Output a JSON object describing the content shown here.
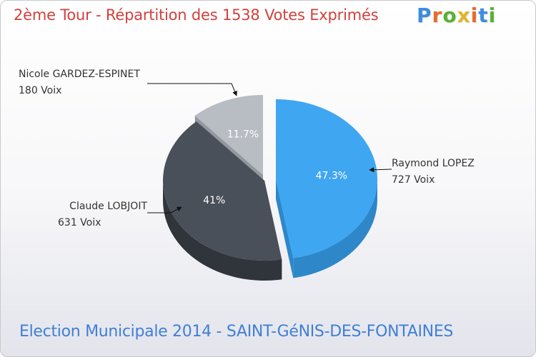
{
  "header": {
    "title": "2ème Tour - Répartition des 1538 Votes Exprimés",
    "logo": [
      "P",
      "r",
      "o",
      "x",
      "i",
      "t",
      "i"
    ],
    "logo_colors": [
      "#3c8de0",
      "#e86a2c",
      "#58b134",
      "#e0b52a",
      "#e86a2c",
      "#3c8de0",
      "#58b134"
    ]
  },
  "footer": {
    "caption": "Election Municipale 2014 - SAINT-GéNIS-DES-FONTAINES"
  },
  "chart_data": {
    "type": "pie",
    "title": "2ème Tour - Répartition des 1538 Votes Exprimés",
    "total_votes": 1538,
    "slices": [
      {
        "name": "Raymond LOPEZ",
        "votes": 727,
        "votes_label": "727 Voix",
        "percent": 47.3,
        "percent_label": "47.3%",
        "color": "#3fa6f2",
        "side_color": "#2d87c9"
      },
      {
        "name": "Claude LOBJOIT",
        "votes": 631,
        "votes_label": "631 Voix",
        "percent": 41,
        "percent_label": "41%",
        "color": "#4a5059",
        "side_color": "#30353c"
      },
      {
        "name": "Nicole GARDEZ-ESPINET",
        "votes": 180,
        "votes_label": "180 Voix",
        "percent": 11.7,
        "percent_label": "11.7%",
        "color": "#b8bcc3",
        "side_color": "#93979e"
      }
    ]
  }
}
